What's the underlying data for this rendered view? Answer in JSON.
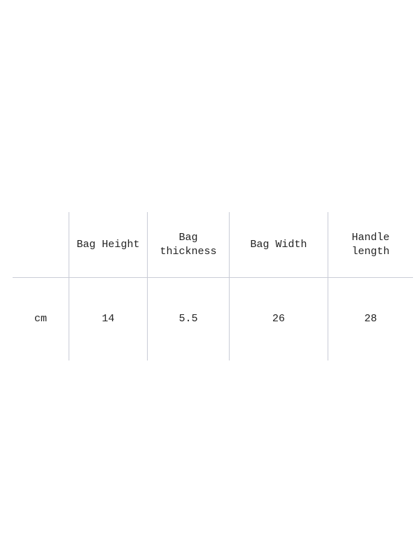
{
  "table": {
    "headers": [
      "",
      "Bag Height",
      "Bag\nthickness",
      "Bag Width",
      "Handle\nlength"
    ],
    "rows": [
      [
        "cm",
        "14",
        "5.5",
        "26",
        "28"
      ]
    ]
  },
  "colors": {
    "grid": "#c9ccd6",
    "text": "#222222",
    "background": "#ffffff"
  }
}
